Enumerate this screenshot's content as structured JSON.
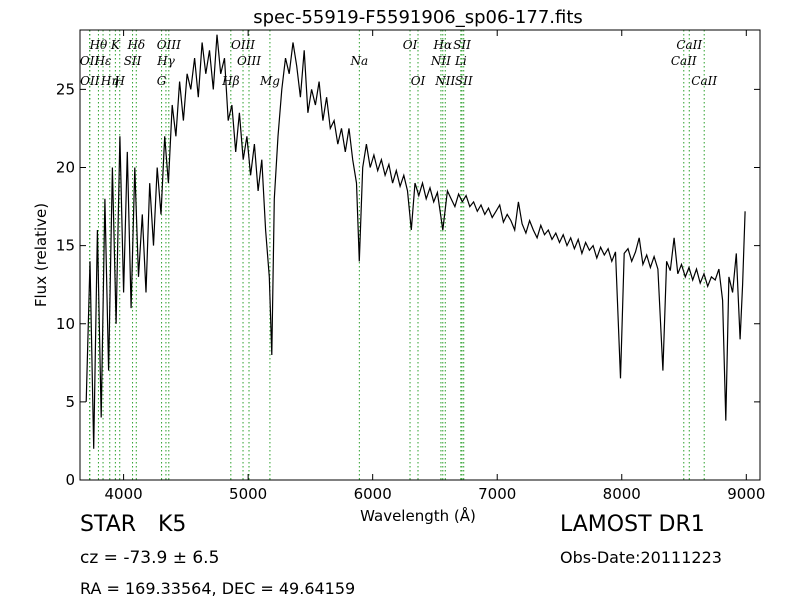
{
  "chart_data": {
    "type": "line",
    "title": "spec-55919-F5591906_sp06-177.fits",
    "xlabel": "Wavelength (Å)",
    "ylabel": "Flux (relative)",
    "xlim": [
      3650,
      9110
    ],
    "ylim": [
      0,
      28.8
    ],
    "xticks": [
      4000,
      5000,
      6000,
      7000,
      8000,
      9000
    ],
    "yticks": [
      0,
      5,
      10,
      15,
      20,
      25
    ],
    "grid": false,
    "series_color": "#000000",
    "line_marker_color": "#2ca02c",
    "series": [
      {
        "x": [
          3700,
          3730,
          3760,
          3790,
          3820,
          3850,
          3880,
          3910,
          3940,
          3970,
          4000,
          4030,
          4060,
          4090,
          4120,
          4150,
          4180,
          4210,
          4240,
          4270,
          4300,
          4330,
          4360,
          4390,
          4420,
          4450,
          4480,
          4510,
          4540,
          4570,
          4600,
          4630,
          4660,
          4690,
          4720,
          4750,
          4780,
          4810,
          4840,
          4870,
          4900,
          4930,
          4960,
          4990,
          5020,
          5050,
          5080,
          5110,
          5140,
          5170,
          5190,
          5210,
          5240,
          5270,
          5300,
          5330,
          5360,
          5390,
          5420,
          5450,
          5480,
          5510,
          5540,
          5570,
          5600,
          5630,
          5660,
          5690,
          5720,
          5750,
          5780,
          5810,
          5840,
          5870,
          5893,
          5920,
          5950,
          5980,
          6010,
          6040,
          6070,
          6100,
          6130,
          6160,
          6190,
          6220,
          6250,
          6280,
          6310,
          6340,
          6370,
          6400,
          6430,
          6460,
          6490,
          6520,
          6563,
          6600,
          6630,
          6660,
          6690,
          6720,
          6750,
          6780,
          6810,
          6840,
          6870,
          6900,
          6930,
          6960,
          6990,
          7020,
          7050,
          7080,
          7110,
          7140,
          7170,
          7200,
          7230,
          7260,
          7290,
          7320,
          7350,
          7380,
          7410,
          7440,
          7470,
          7500,
          7530,
          7560,
          7590,
          7620,
          7650,
          7680,
          7710,
          7740,
          7770,
          7800,
          7830,
          7860,
          7890,
          7920,
          7950,
          7990,
          8020,
          8050,
          8080,
          8110,
          8140,
          8170,
          8200,
          8230,
          8260,
          8290,
          8330,
          8360,
          8390,
          8420,
          8450,
          8480,
          8510,
          8540,
          8570,
          8600,
          8630,
          8660,
          8690,
          8720,
          8750,
          8780,
          8810,
          8835,
          8860,
          8890,
          8920,
          8950,
          8970,
          8990
        ],
        "y": [
          5.0,
          14.0,
          2.0,
          16.0,
          4.0,
          18.0,
          7.0,
          20.0,
          10.0,
          22.0,
          12.0,
          21.0,
          11.0,
          20.0,
          13.0,
          17.0,
          12.0,
          19.0,
          15.0,
          20.0,
          17.0,
          22.0,
          19.0,
          24.0,
          22.0,
          25.5,
          23.0,
          26.0,
          25.0,
          27.0,
          24.5,
          28.0,
          26.0,
          27.5,
          25.0,
          28.5,
          26.0,
          27.0,
          23.0,
          24.0,
          21.0,
          23.5,
          20.5,
          22.0,
          19.5,
          21.5,
          18.5,
          20.5,
          16.0,
          13.0,
          8.0,
          18.0,
          22.0,
          25.0,
          27.0,
          26.0,
          28.0,
          26.5,
          24.5,
          27.5,
          23.5,
          25.0,
          24.0,
          25.5,
          23.0,
          24.5,
          22.5,
          23.0,
          21.5,
          22.5,
          21.0,
          22.5,
          20.5,
          19.0,
          14.0,
          20.0,
          21.5,
          20.0,
          20.8,
          19.8,
          20.5,
          19.5,
          20.2,
          19.0,
          19.8,
          18.8,
          19.5,
          18.5,
          16.0,
          19.0,
          18.2,
          19.0,
          18.0,
          18.7,
          17.8,
          18.4,
          16.0,
          18.5,
          18.0,
          17.5,
          18.3,
          17.8,
          18.2,
          17.5,
          17.8,
          17.2,
          17.6,
          17.0,
          17.4,
          16.8,
          17.2,
          17.6,
          16.5,
          17.0,
          16.6,
          16.0,
          17.8,
          16.4,
          15.8,
          16.6,
          16.0,
          15.5,
          16.3,
          15.7,
          16.0,
          15.4,
          15.8,
          15.2,
          15.7,
          15.0,
          15.5,
          14.8,
          15.4,
          14.5,
          15.2,
          14.7,
          15.0,
          14.2,
          14.9,
          14.4,
          14.8,
          14.0,
          14.6,
          6.5,
          14.5,
          14.8,
          14.0,
          14.6,
          15.5,
          13.8,
          14.4,
          13.6,
          14.3,
          13.5,
          7.0,
          14.0,
          13.4,
          15.5,
          13.2,
          13.8,
          13.0,
          13.6,
          12.8,
          13.5,
          12.6,
          13.2,
          12.4,
          13.0,
          12.8,
          13.5,
          11.5,
          3.8,
          13.0,
          12.0,
          14.5,
          9.0,
          12.5,
          17.2
        ]
      }
    ],
    "lines": [
      {
        "label": "Hθ",
        "x": 3798,
        "row": 0
      },
      {
        "label": "K",
        "x": 3934,
        "row": 0
      },
      {
        "label": "Hδ",
        "x": 4102,
        "row": 0
      },
      {
        "label": "OIII",
        "x": 4363,
        "row": 0
      },
      {
        "label": "OIII",
        "x": 4959,
        "row": 0
      },
      {
        "label": "OI",
        "x": 6300,
        "row": 0
      },
      {
        "label": "Hα",
        "x": 6563,
        "row": 0
      },
      {
        "label": "SII",
        "x": 6717,
        "row": 0
      },
      {
        "label": "CaII",
        "x": 8542,
        "row": 0
      },
      {
        "label": "OII",
        "x": 3727,
        "row": 1
      },
      {
        "label": "Hε",
        "x": 3835,
        "row": 1
      },
      {
        "label": "SII",
        "x": 4072,
        "row": 1
      },
      {
        "label": "Hγ",
        "x": 4340,
        "row": 1
      },
      {
        "label": "OIII",
        "x": 5007,
        "row": 1
      },
      {
        "label": "NII",
        "x": 6548,
        "row": 1
      },
      {
        "label": "Li",
        "x": 6708,
        "row": 1
      },
      {
        "label": "CaII",
        "x": 8498,
        "row": 1
      },
      {
        "label": "OII",
        "x": 3729,
        "row": 2
      },
      {
        "label": "Hη",
        "x": 3889,
        "row": 2
      },
      {
        "label": "H",
        "x": 3969,
        "row": 2
      },
      {
        "label": "G",
        "x": 4305,
        "row": 2
      },
      {
        "label": "Hβ",
        "x": 4861,
        "row": 2
      },
      {
        "label": "Mg",
        "x": 5175,
        "row": 2
      },
      {
        "label": "Na",
        "x": 5893,
        "row": 1
      },
      {
        "label": "OI",
        "x": 6364,
        "row": 2
      },
      {
        "label": "NII",
        "x": 6583,
        "row": 2
      },
      {
        "label": "SII",
        "x": 6731,
        "row": 2
      },
      {
        "label": "CaII",
        "x": 8662,
        "row": 2
      }
    ]
  },
  "info": {
    "class": "STAR",
    "subclass": "K5",
    "survey": "LAMOST DR1",
    "redshift": "cz = -73.9 ± 6.5",
    "obs_date": "Obs-Date:20111223",
    "coords": "RA = 169.33564, DEC = 49.64159"
  }
}
